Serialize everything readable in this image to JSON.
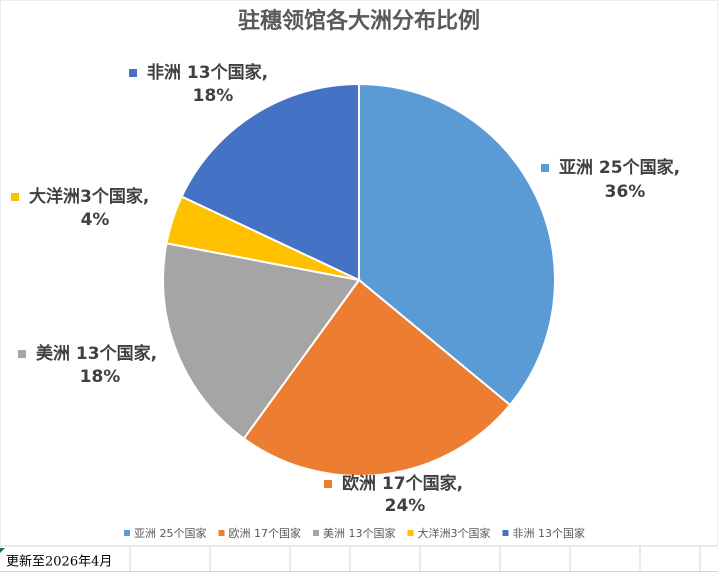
{
  "chart_data": {
    "type": "pie",
    "title": "驻穗领馆各大洲分布比例",
    "categories": [
      "亚洲 25个国家",
      "欧洲 17个国家",
      "美洲 13个国家",
      "大洋洲3个国家",
      "非洲 13个国家"
    ],
    "values": [
      36,
      24,
      18,
      4,
      18
    ],
    "value_labels": [
      "36%",
      "24%",
      "18%",
      "4%",
      "18%"
    ],
    "data_labels": [
      "亚洲 25个国家,",
      "欧洲 17个国家,",
      "美洲 13个国家,",
      "大洋洲3个国家,",
      "非洲 13个国家,"
    ],
    "colors": [
      "#5b9bd5",
      "#ed7d31",
      "#a5a5a5",
      "#ffc000",
      "#4472c4"
    ],
    "legend": "bottom"
  },
  "footer": "更新至2026年4月"
}
